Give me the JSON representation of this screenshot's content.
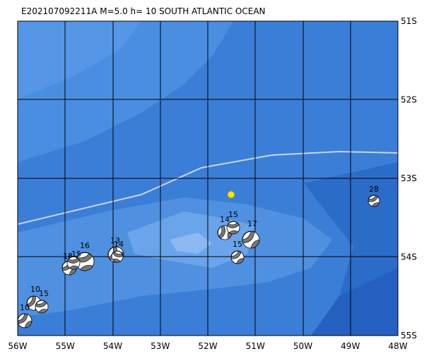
{
  "header": {
    "title": "E202107092211A  M=5.0  h= 10 SOUTH ATLANTIC OCEAN"
  },
  "axes": {
    "longitude_labels": [
      "56W",
      "55W",
      "54W",
      "53W",
      "52W",
      "51W",
      "50W",
      "49W",
      "48W"
    ],
    "latitude_labels": [
      "51S",
      "52S",
      "53S",
      "54S",
      "55S"
    ]
  },
  "events": [
    {
      "label": "28"
    },
    {
      "label": "14"
    },
    {
      "label": "15"
    },
    {
      "label": "17"
    },
    {
      "label": "15"
    },
    {
      "label": "16"
    },
    {
      "label": "13"
    },
    {
      "label": "14"
    },
    {
      "label": "18"
    },
    {
      "label": "15"
    },
    {
      "label": "10"
    },
    {
      "label": "15"
    },
    {
      "label": "10"
    }
  ]
}
